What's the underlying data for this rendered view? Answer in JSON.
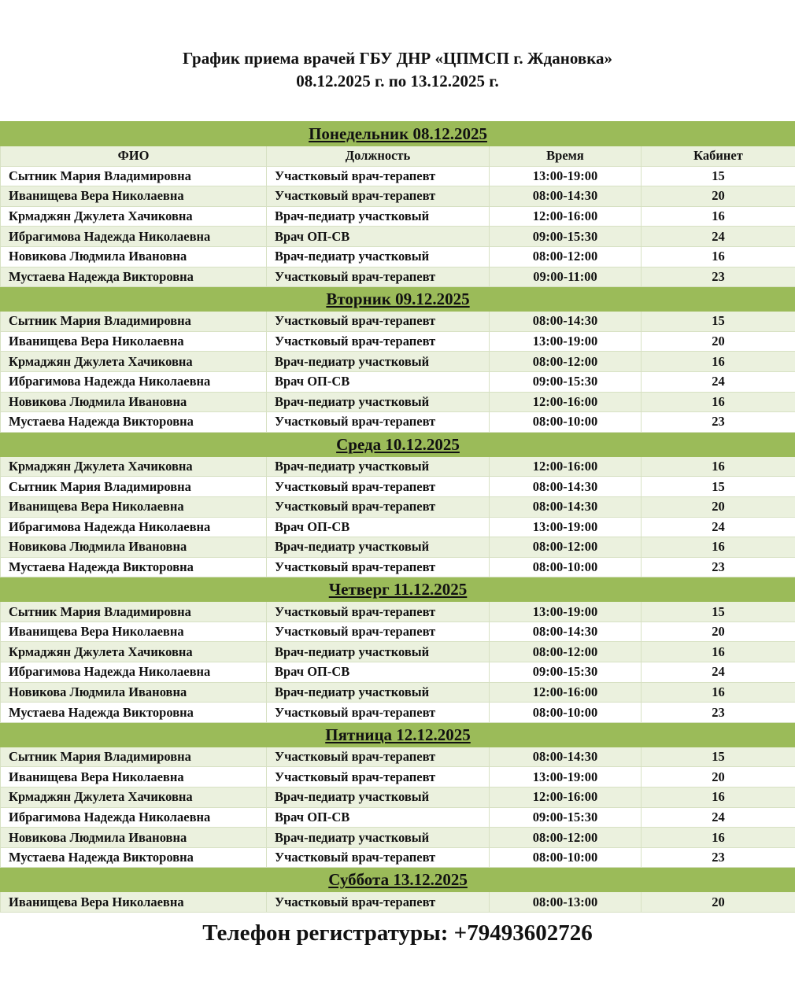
{
  "title": {
    "line1": "График приема врачей ГБУ ДНР «ЦПМСП г. Ждановка»",
    "line2": "08.12.2025 г. по 13.12.2025 г."
  },
  "columns": [
    "ФИО",
    "Должность",
    "Время",
    "Кабинет"
  ],
  "colors": {
    "day_header": "#9bbb59",
    "row_alt": "#ebf1de"
  },
  "days": [
    {
      "label": "Понедельник 08.12.2025",
      "rows": [
        [
          "Сытник Мария Владимировна",
          "Участковый врач-терапевт",
          "13:00-19:00",
          "15"
        ],
        [
          "Иванищева Вера Николаевна",
          "Участковый врач-терапевт",
          "08:00-14:30",
          "20"
        ],
        [
          "Крмаджян Джулета Хачиковна",
          "Врач-педиатр участковый",
          "12:00-16:00",
          "16"
        ],
        [
          "Ибрагимова Надежда Николаевна",
          "Врач ОП-СВ",
          "09:00-15:30",
          "24"
        ],
        [
          "Новикова Людмила Ивановна",
          "Врач-педиатр участковый",
          "08:00-12:00",
          "16"
        ],
        [
          "Мустаева Надежда Викторовна",
          "Участковый врач-терапевт",
          "09:00-11:00",
          "23"
        ]
      ]
    },
    {
      "label": "Вторник 09.12.2025",
      "rows": [
        [
          "Сытник Мария Владимировна",
          "Участковый врач-терапевт",
          "08:00-14:30",
          "15"
        ],
        [
          "Иванищева Вера Николаевна",
          "Участковый врач-терапевт",
          "13:00-19:00",
          "20"
        ],
        [
          "Крмаджян Джулета Хачиковна",
          "Врач-педиатр участковый",
          "08:00-12:00",
          "16"
        ],
        [
          "Ибрагимова Надежда Николаевна",
          "Врач ОП-СВ",
          "09:00-15:30",
          "24"
        ],
        [
          "Новикова Людмила Ивановна",
          "Врач-педиатр участковый",
          "12:00-16:00",
          "16"
        ],
        [
          "Мустаева Надежда Викторовна",
          "Участковый врач-терапевт",
          "08:00-10:00",
          "23"
        ]
      ]
    },
    {
      "label": "Среда 10.12.2025",
      "rows": [
        [
          "Крмаджян Джулета Хачиковна",
          "Врач-педиатр участковый",
          "12:00-16:00",
          "16"
        ],
        [
          "Сытник Мария Владимировна",
          "Участковый врач-терапевт",
          "08:00-14:30",
          "15"
        ],
        [
          "Иванищева Вера Николаевна",
          "Участковый врач-терапевт",
          "08:00-14:30",
          "20"
        ],
        [
          "Ибрагимова Надежда Николаевна",
          "Врач ОП-СВ",
          "13:00-19:00",
          "24"
        ],
        [
          "Новикова Людмила Ивановна",
          "Врач-педиатр участковый",
          "08:00-12:00",
          "16"
        ],
        [
          "Мустаева Надежда Викторовна",
          "Участковый врач-терапевт",
          "08:00-10:00",
          "23"
        ]
      ]
    },
    {
      "label": "Четверг 11.12.2025",
      "rows": [
        [
          "Сытник Мария Владимировна",
          "Участковый врач-терапевт",
          "13:00-19:00",
          "15"
        ],
        [
          "Иванищева Вера Николаевна",
          "Участковый врач-терапевт",
          "08:00-14:30",
          "20"
        ],
        [
          "Крмаджян Джулета Хачиковна",
          "Врач-педиатр участковый",
          "08:00-12:00",
          "16"
        ],
        [
          "Ибрагимова Надежда Николаевна",
          "Врач ОП-СВ",
          "09:00-15:30",
          "24"
        ],
        [
          "Новикова Людмила Ивановна",
          "Врач-педиатр участковый",
          "12:00-16:00",
          "16"
        ],
        [
          "Мустаева Надежда Викторовна",
          "Участковый врач-терапевт",
          "08:00-10:00",
          "23"
        ]
      ]
    },
    {
      "label": "Пятница 12.12.2025",
      "rows": [
        [
          "Сытник Мария Владимировна",
          "Участковый врач-терапевт",
          "08:00-14:30",
          "15"
        ],
        [
          "Иванищева Вера Николаевна",
          "Участковый врач-терапевт",
          "13:00-19:00",
          "20"
        ],
        [
          "Крмаджян Джулета Хачиковна",
          "Врач-педиатр участковый",
          "12:00-16:00",
          "16"
        ],
        [
          "Ибрагимова Надежда Николаевна",
          "Врач ОП-СВ",
          "09:00-15:30",
          "24"
        ],
        [
          "Новикова Людмила Ивановна",
          "Врач-педиатр участковый",
          "08:00-12:00",
          "16"
        ],
        [
          "Мустаева Надежда Викторовна",
          "Участковый врач-терапевт",
          "08:00-10:00",
          "23"
        ]
      ]
    },
    {
      "label": "Суббота 13.12.2025",
      "rows": [
        [
          "Иванищева Вера Николаевна",
          "Участковый врач-терапевт",
          "08:00-13:00",
          "20"
        ]
      ]
    }
  ],
  "footer": {
    "phone": "Телефон регистратуры: +79493602726"
  }
}
